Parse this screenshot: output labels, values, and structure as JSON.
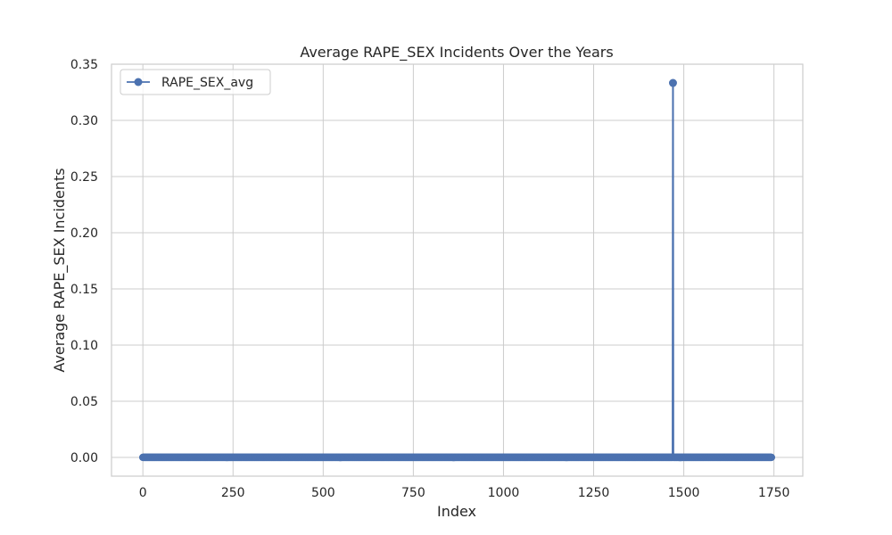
{
  "chart_data": {
    "type": "line",
    "title": "Average RAPE_SEX Incidents Over the Years",
    "xlabel": "Index",
    "ylabel": "Average RAPE_SEX Incidents",
    "xlim": [
      -87,
      1830
    ],
    "ylim": [
      -0.0167,
      0.35
    ],
    "xticks": [
      0,
      250,
      500,
      750,
      1000,
      1250,
      1500,
      1750
    ],
    "yticks": [
      0.0,
      0.05,
      0.1,
      0.15,
      0.2,
      0.25,
      0.3,
      0.35
    ],
    "ytick_labels": [
      "0.00",
      "0.05",
      "0.10",
      "0.15",
      "0.20",
      "0.25",
      "0.30",
      "0.35"
    ],
    "grid": true,
    "legend_position": "top-left",
    "series": [
      {
        "name": "RAPE_SEX_avg",
        "color": "#4c72b0",
        "marker": "circle",
        "x_range": [
          0,
          1743
        ],
        "baseline_value": 0.0,
        "nonzero_points": [
          {
            "x": 1470,
            "y": 0.3333
          }
        ]
      }
    ]
  }
}
